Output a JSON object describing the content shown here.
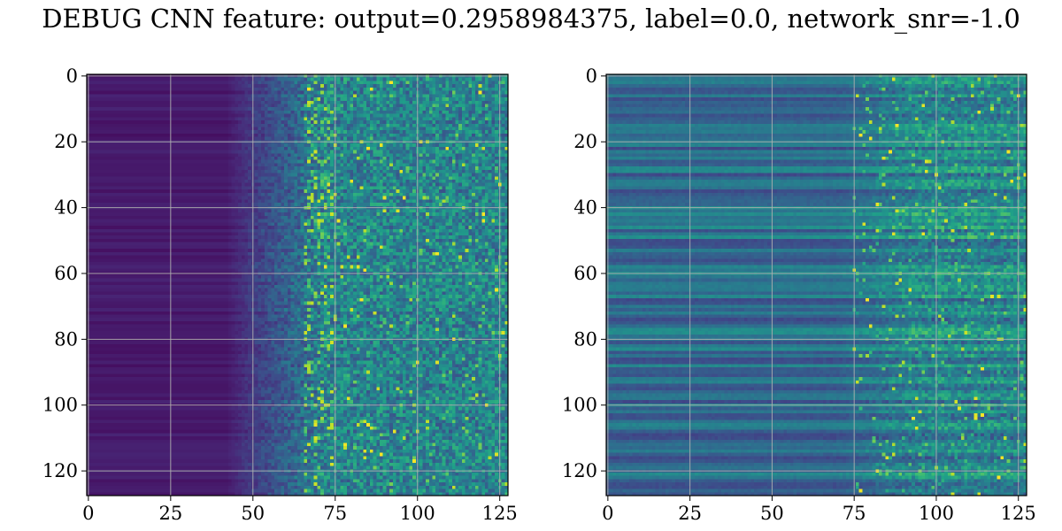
{
  "figure": {
    "title": "DEBUG CNN feature: output=0.2958984375, label=0.0, network_snr=-1.0"
  },
  "chart_data": [
    {
      "type": "heatmap",
      "colormap": "viridis",
      "rows": 128,
      "cols": 128,
      "xlim": [
        -0.5,
        127.5
      ],
      "ylim": [
        127.5,
        -0.5
      ],
      "y_inverted": true,
      "grid": true,
      "xticks": [
        0,
        25,
        50,
        75,
        100,
        125
      ],
      "yticks": [
        0,
        20,
        40,
        60,
        80,
        100,
        120
      ],
      "xtick_labels": [
        "0",
        "25",
        "50",
        "75",
        "100",
        "125"
      ],
      "ytick_labels": [
        "0",
        "20",
        "40",
        "60",
        "80",
        "100",
        "120"
      ],
      "pattern": "low values (dark purple) for columns 0-45, gradual increase to bright speckles (teal/yellow) beyond column ~68"
    },
    {
      "type": "heatmap",
      "colormap": "viridis",
      "rows": 128,
      "cols": 128,
      "xlim": [
        -0.5,
        127.5
      ],
      "ylim": [
        127.5,
        -0.5
      ],
      "y_inverted": true,
      "grid": true,
      "xticks": [
        0,
        25,
        50,
        75,
        100,
        125
      ],
      "yticks": [
        0,
        20,
        40,
        60,
        80,
        100,
        120
      ],
      "xtick_labels": [
        "0",
        "25",
        "50",
        "75",
        "100",
        "125"
      ],
      "ytick_labels": [
        "0",
        "20",
        "40",
        "60",
        "80",
        "100",
        "120"
      ],
      "pattern": "horizontal row-wise stripes (blue/teal) with brighter speckles (green/yellow) beyond column ~75"
    }
  ]
}
